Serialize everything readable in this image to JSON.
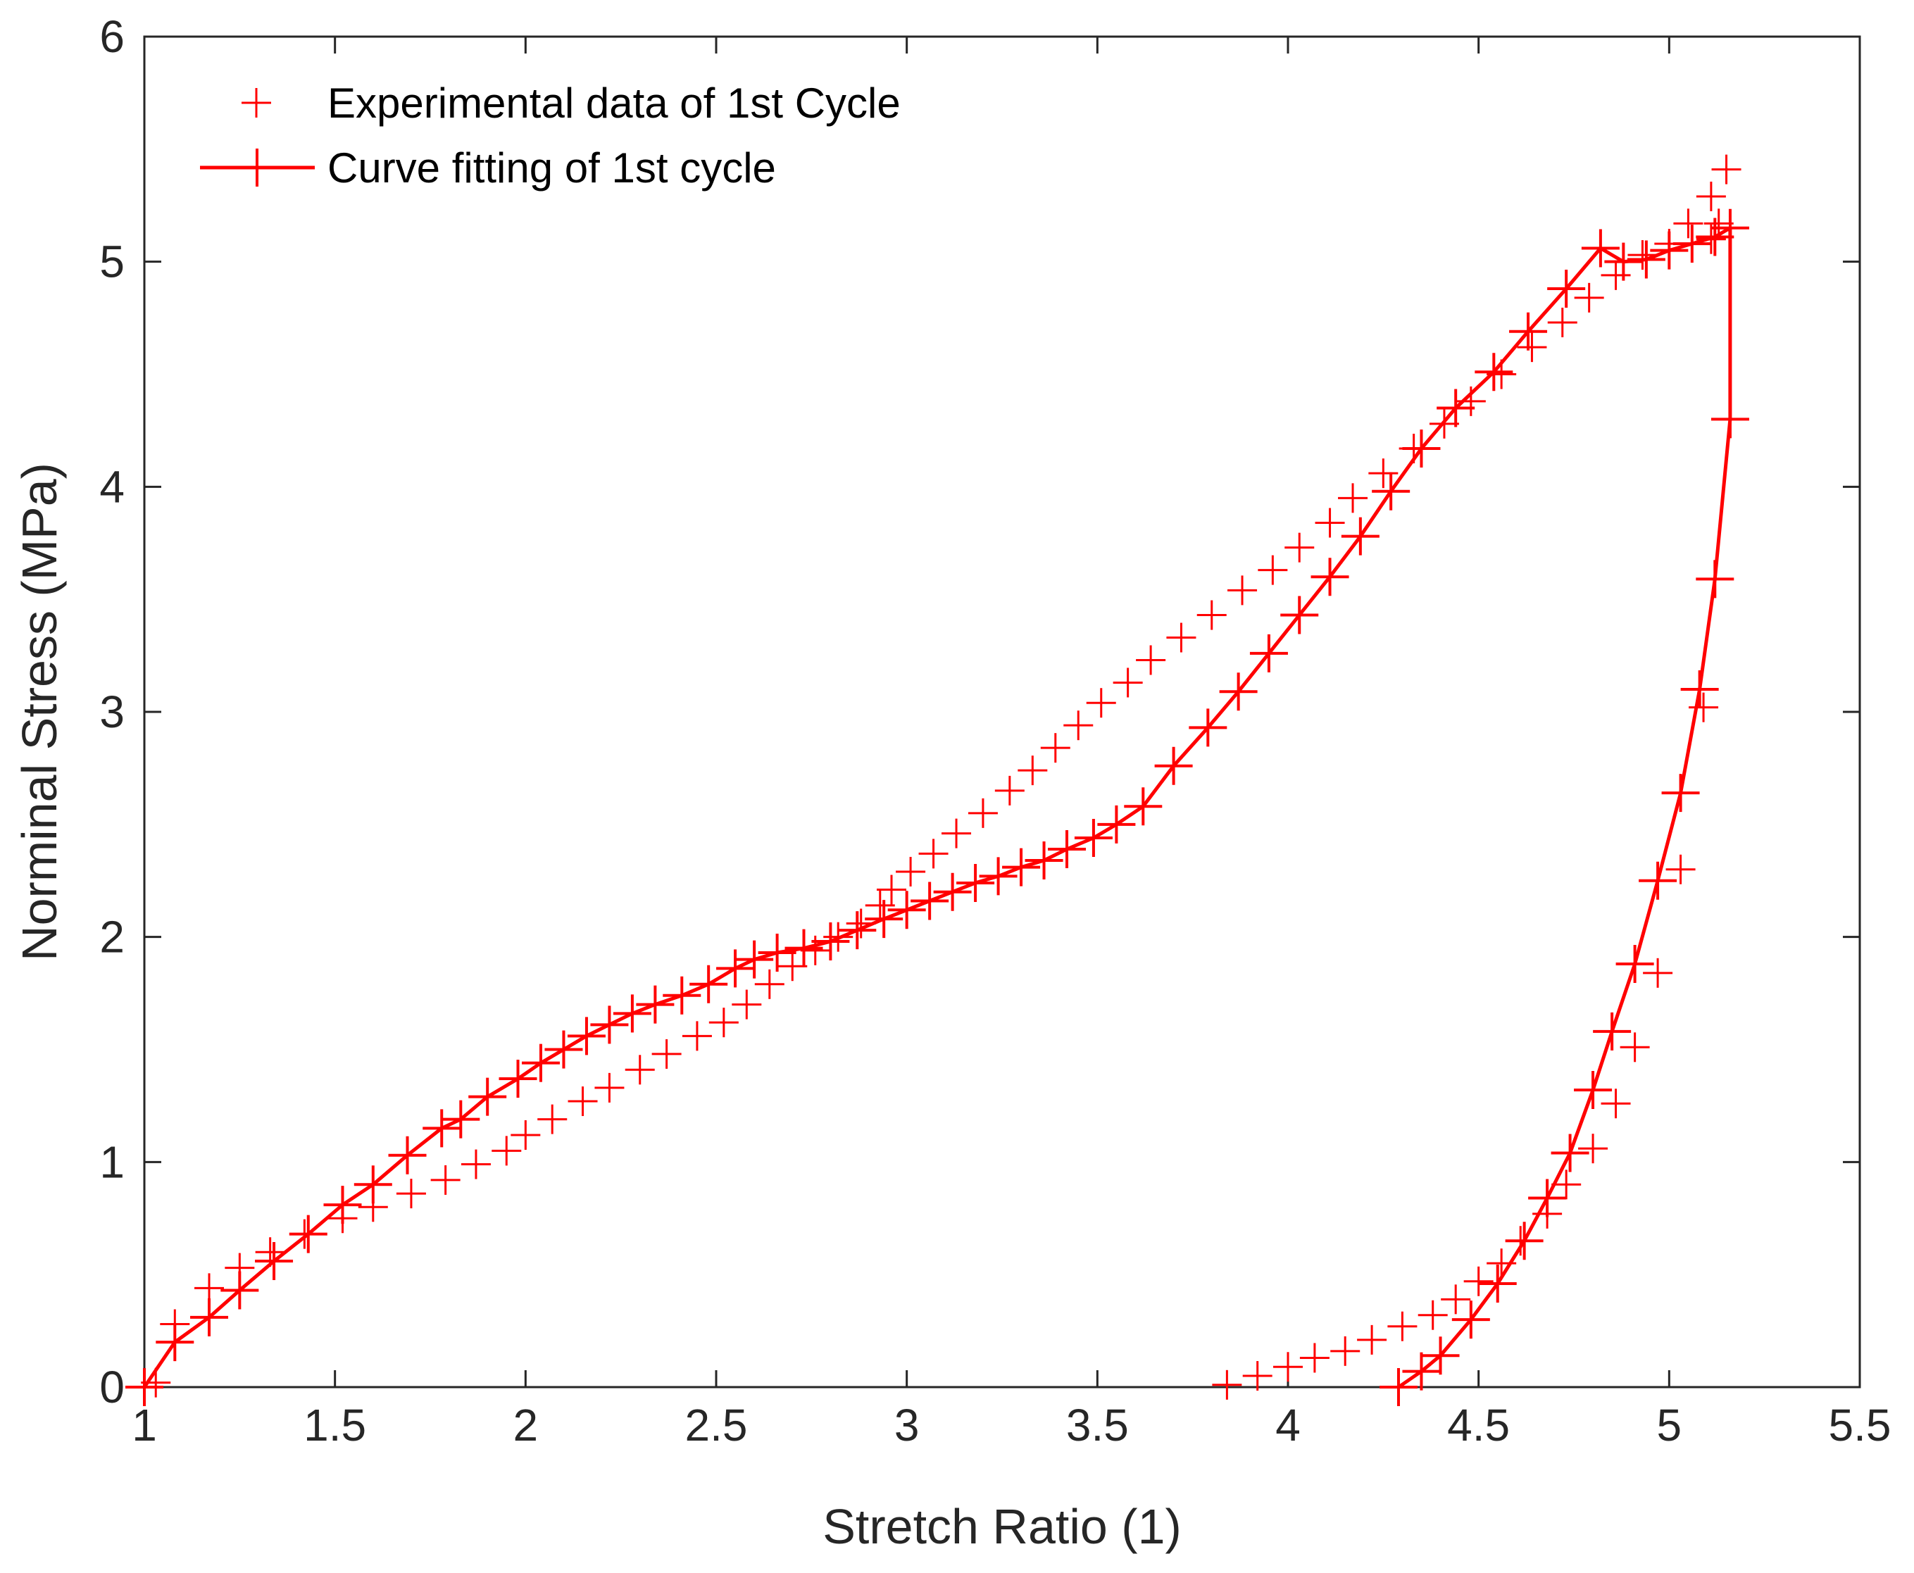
{
  "chart_data": {
    "type": "line",
    "title": "",
    "xlabel": "Stretch Ratio (1)",
    "ylabel": "Norminal Stress (MPa)",
    "xlim": [
      1,
      5.5
    ],
    "ylim": [
      0,
      6
    ],
    "xticks": [
      1,
      1.5,
      2,
      2.5,
      3,
      3.5,
      4,
      4.5,
      5,
      5.5
    ],
    "xtick_labels": [
      "1",
      "1.5",
      "2",
      "2.5",
      "3",
      "3.5",
      "4",
      "4.5",
      "5",
      "5.5"
    ],
    "yticks": [
      0,
      1,
      2,
      3,
      4,
      5,
      6
    ],
    "ytick_labels": [
      "0",
      "1",
      "2",
      "3",
      "4",
      "5",
      "6"
    ],
    "grid": false,
    "legend_position": "top-left",
    "color": "#ff0000",
    "series": [
      {
        "name": "Experimental data of 1st Cycle",
        "style": "markers",
        "marker": "+",
        "points": [
          [
            1.03,
            0.02
          ],
          [
            1.08,
            0.28
          ],
          [
            1.17,
            0.44
          ],
          [
            1.25,
            0.53
          ],
          [
            1.33,
            0.6
          ],
          [
            1.42,
            0.68
          ],
          [
            1.52,
            0.75
          ],
          [
            1.6,
            0.8
          ],
          [
            1.7,
            0.86
          ],
          [
            1.79,
            0.92
          ],
          [
            1.87,
            0.99
          ],
          [
            1.95,
            1.05
          ],
          [
            2.0,
            1.12
          ],
          [
            2.07,
            1.19
          ],
          [
            2.15,
            1.27
          ],
          [
            2.22,
            1.33
          ],
          [
            2.3,
            1.41
          ],
          [
            2.37,
            1.48
          ],
          [
            2.45,
            1.56
          ],
          [
            2.52,
            1.62
          ],
          [
            2.58,
            1.7
          ],
          [
            2.64,
            1.79
          ],
          [
            2.7,
            1.87
          ],
          [
            2.76,
            1.94
          ],
          [
            2.82,
            2.0
          ],
          [
            2.88,
            2.06
          ],
          [
            2.93,
            2.14
          ],
          [
            2.96,
            2.21
          ],
          [
            3.01,
            2.29
          ],
          [
            3.07,
            2.37
          ],
          [
            3.13,
            2.46
          ],
          [
            3.2,
            2.55
          ],
          [
            3.27,
            2.65
          ],
          [
            3.33,
            2.74
          ],
          [
            3.39,
            2.84
          ],
          [
            3.45,
            2.94
          ],
          [
            3.51,
            3.04
          ],
          [
            3.58,
            3.13
          ],
          [
            3.64,
            3.23
          ],
          [
            3.72,
            3.33
          ],
          [
            3.8,
            3.43
          ],
          [
            3.88,
            3.54
          ],
          [
            3.96,
            3.63
          ],
          [
            4.03,
            3.73
          ],
          [
            4.11,
            3.84
          ],
          [
            4.17,
            3.95
          ],
          [
            4.25,
            4.06
          ],
          [
            4.33,
            4.17
          ],
          [
            4.41,
            4.28
          ],
          [
            4.48,
            4.38
          ],
          [
            4.56,
            4.5
          ],
          [
            4.64,
            4.62
          ],
          [
            4.72,
            4.73
          ],
          [
            4.79,
            4.84
          ],
          [
            4.86,
            4.94
          ],
          [
            4.93,
            5.03
          ],
          [
            5.0,
            5.08
          ],
          [
            5.05,
            5.17
          ],
          [
            5.11,
            5.29
          ],
          [
            5.15,
            5.41
          ],
          [
            5.13,
            5.17
          ],
          [
            5.11,
            5.1
          ],
          [
            5.09,
            3.02
          ],
          [
            5.03,
            2.3
          ],
          [
            4.97,
            1.84
          ],
          [
            4.91,
            1.51
          ],
          [
            4.86,
            1.26
          ],
          [
            4.8,
            1.06
          ],
          [
            4.73,
            0.9
          ],
          [
            4.68,
            0.77
          ],
          [
            4.61,
            0.65
          ],
          [
            4.56,
            0.55
          ],
          [
            4.5,
            0.47
          ],
          [
            4.44,
            0.39
          ],
          [
            4.38,
            0.32
          ],
          [
            4.3,
            0.27
          ],
          [
            4.22,
            0.21
          ],
          [
            4.15,
            0.16
          ],
          [
            4.07,
            0.13
          ],
          [
            4.0,
            0.09
          ],
          [
            3.92,
            0.05
          ],
          [
            3.84,
            0.01
          ]
        ]
      },
      {
        "name": "Curve fitting of 1st cycle",
        "style": "line+markers",
        "marker": "+",
        "points": [
          [
            1.0,
            0.0
          ],
          [
            1.08,
            0.2
          ],
          [
            1.17,
            0.31
          ],
          [
            1.25,
            0.43
          ],
          [
            1.34,
            0.56
          ],
          [
            1.43,
            0.68
          ],
          [
            1.52,
            0.81
          ],
          [
            1.6,
            0.9
          ],
          [
            1.69,
            1.03
          ],
          [
            1.78,
            1.15
          ],
          [
            1.83,
            1.19
          ],
          [
            1.9,
            1.29
          ],
          [
            1.98,
            1.37
          ],
          [
            2.04,
            1.44
          ],
          [
            2.1,
            1.5
          ],
          [
            2.16,
            1.56
          ],
          [
            2.22,
            1.61
          ],
          [
            2.28,
            1.66
          ],
          [
            2.34,
            1.7
          ],
          [
            2.41,
            1.74
          ],
          [
            2.48,
            1.79
          ],
          [
            2.55,
            1.86
          ],
          [
            2.6,
            1.9
          ],
          [
            2.66,
            1.93
          ],
          [
            2.73,
            1.95
          ],
          [
            2.8,
            1.98
          ],
          [
            2.87,
            2.03
          ],
          [
            2.94,
            2.08
          ],
          [
            3.0,
            2.12
          ],
          [
            3.06,
            2.16
          ],
          [
            3.12,
            2.2
          ],
          [
            3.18,
            2.24
          ],
          [
            3.24,
            2.27
          ],
          [
            3.3,
            2.31
          ],
          [
            3.36,
            2.34
          ],
          [
            3.42,
            2.39
          ],
          [
            3.49,
            2.44
          ],
          [
            3.55,
            2.5
          ],
          [
            3.62,
            2.58
          ],
          [
            3.7,
            2.76
          ],
          [
            3.79,
            2.93
          ],
          [
            3.87,
            3.09
          ],
          [
            3.95,
            3.26
          ],
          [
            4.03,
            3.43
          ],
          [
            4.11,
            3.6
          ],
          [
            4.19,
            3.78
          ],
          [
            4.27,
            3.98
          ],
          [
            4.35,
            4.17
          ],
          [
            4.44,
            4.35
          ],
          [
            4.54,
            4.51
          ],
          [
            4.63,
            4.69
          ],
          [
            4.73,
            4.88
          ],
          [
            4.82,
            5.06
          ],
          [
            4.88,
            5.0
          ],
          [
            4.94,
            5.01
          ],
          [
            5.0,
            5.05
          ],
          [
            5.06,
            5.08
          ],
          [
            5.12,
            5.11
          ],
          [
            5.16,
            5.15
          ],
          [
            5.16,
            4.3
          ],
          [
            5.12,
            3.59
          ],
          [
            5.08,
            3.1
          ],
          [
            5.03,
            2.64
          ],
          [
            4.97,
            2.25
          ],
          [
            4.91,
            1.88
          ],
          [
            4.85,
            1.58
          ],
          [
            4.8,
            1.32
          ],
          [
            4.74,
            1.04
          ],
          [
            4.68,
            0.84
          ],
          [
            4.62,
            0.65
          ],
          [
            4.55,
            0.46
          ],
          [
            4.48,
            0.3
          ],
          [
            4.4,
            0.14
          ],
          [
            4.35,
            0.07
          ],
          [
            4.29,
            0.0
          ]
        ]
      }
    ]
  }
}
